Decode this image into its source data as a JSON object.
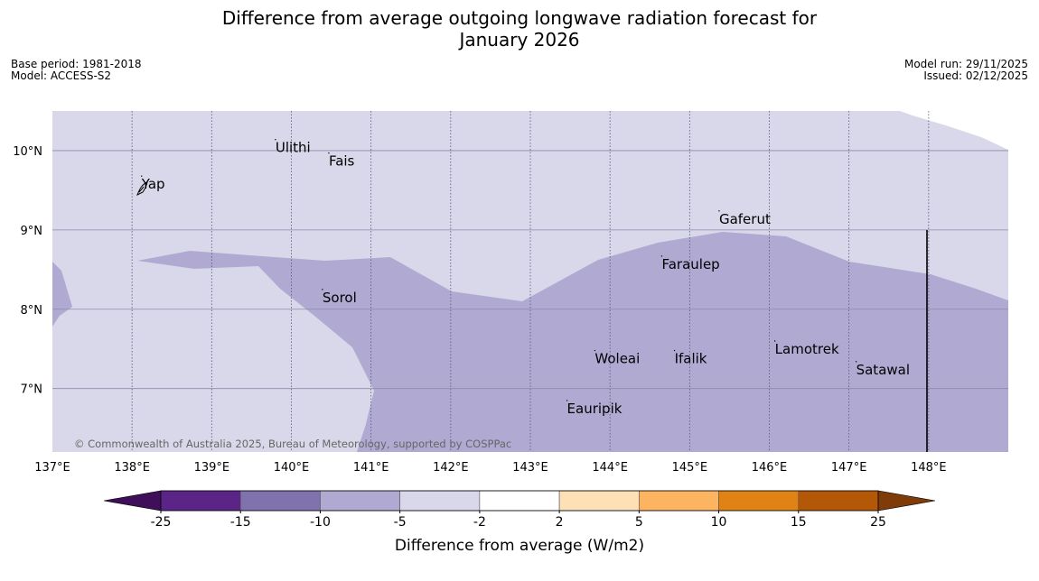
{
  "header": {
    "title_line1": "Difference from average outgoing longwave radiation forecast for",
    "title_line2": "January 2026",
    "base_period": "Base period: 1981-2018",
    "model": "Model: ACCESS-S2",
    "model_run": "Model run: 29/11/2025",
    "issued": "Issued: 02/12/2025"
  },
  "map": {
    "lon_range": [
      137.0,
      149.0
    ],
    "lat_range": [
      6.2,
      10.5
    ],
    "lon_ticks": [
      {
        "value": 137,
        "label": "137°E"
      },
      {
        "value": 138,
        "label": "138°E"
      },
      {
        "value": 139,
        "label": "139°E"
      },
      {
        "value": 140,
        "label": "140°E"
      },
      {
        "value": 141,
        "label": "141°E"
      },
      {
        "value": 142,
        "label": "142°E"
      },
      {
        "value": 143,
        "label": "143°E"
      },
      {
        "value": 144,
        "label": "144°E"
      },
      {
        "value": 145,
        "label": "145°E"
      },
      {
        "value": 146,
        "label": "146°E"
      },
      {
        "value": 147,
        "label": "147°E"
      },
      {
        "value": 148,
        "label": "148°E"
      }
    ],
    "lat_ticks": [
      {
        "value": 10,
        "label": "10°N"
      },
      {
        "value": 9,
        "label": "9°N"
      },
      {
        "value": 8,
        "label": "8°N"
      },
      {
        "value": 7,
        "label": "7°N"
      }
    ],
    "places": [
      {
        "name": "Ulithi",
        "lon": 139.8,
        "lat": 9.98
      },
      {
        "name": "Fais",
        "lon": 140.47,
        "lat": 9.81
      },
      {
        "name": "Yap",
        "lon": 138.12,
        "lat": 9.52
      },
      {
        "name": "Gaferut",
        "lon": 145.37,
        "lat": 9.08
      },
      {
        "name": "Faraulep",
        "lon": 144.65,
        "lat": 8.51
      },
      {
        "name": "Sorol",
        "lon": 140.39,
        "lat": 8.09
      },
      {
        "name": "Lamotrek",
        "lon": 146.07,
        "lat": 7.44
      },
      {
        "name": "Woleai",
        "lon": 143.81,
        "lat": 7.32
      },
      {
        "name": "Ifalik",
        "lon": 144.81,
        "lat": 7.32
      },
      {
        "name": "Satawal",
        "lon": 147.09,
        "lat": 7.18
      },
      {
        "name": "Eauripik",
        "lon": 143.46,
        "lat": 6.69
      }
    ],
    "copyright": "© Commonwealth of Australia 2025, Bureau of Meteorology, supported by COSPPac",
    "region_colors": {
      "light": "#d8d8ea",
      "medium": "#b0aad2"
    }
  },
  "colorbar": {
    "label": "Difference from average (W/m2)",
    "low_extend_color": "#3f0f5a",
    "high_extend_color": "#7f3b08",
    "bins": [
      {
        "color": "#5b2487",
        "from": "-25",
        "to": "-15"
      },
      {
        "color": "#8072ac",
        "from": "-15",
        "to": "-10"
      },
      {
        "color": "#b0aad2",
        "from": "-10",
        "to": "-5"
      },
      {
        "color": "#d8d8ea",
        "from": "-5",
        "to": "-2"
      },
      {
        "color": "#ffffff",
        "from": "-2",
        "to": "2"
      },
      {
        "color": "#fde0b6",
        "from": "2",
        "to": "5"
      },
      {
        "color": "#fcb461",
        "from": "5",
        "to": "10"
      },
      {
        "color": "#e08214",
        "from": "10",
        "to": "15"
      },
      {
        "color": "#b35806",
        "from": "15",
        "to": "25"
      }
    ],
    "ticks": [
      "-25",
      "-15",
      "-10",
      "-5",
      "-2",
      "2",
      "5",
      "10",
      "15",
      "25"
    ]
  }
}
